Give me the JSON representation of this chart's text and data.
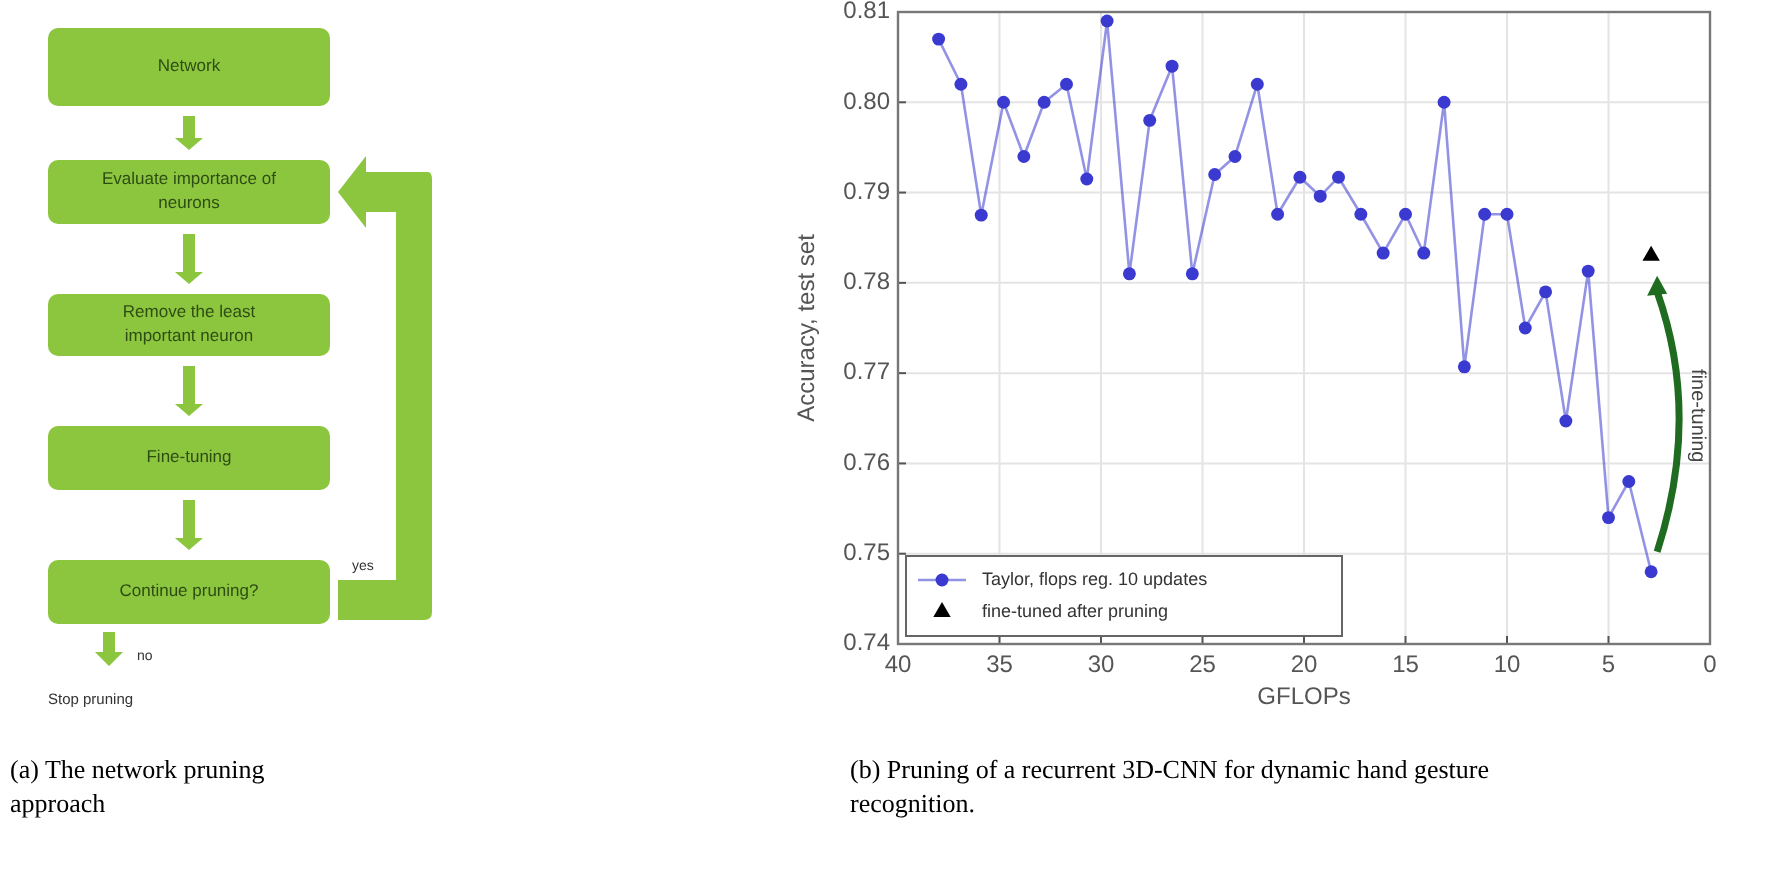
{
  "chart_data": [
    {
      "type": "other",
      "annotations": [
        "Network",
        "Evaluate importance of neurons",
        "Remove the least important neuron",
        "Fine-tuning",
        "Continue pruning?",
        "yes",
        "no",
        "Stop pruning",
        "(a) The network pruning approach"
      ]
    },
    {
      "type": "line",
      "xlabel": "GFLOPs",
      "ylabel": "Accuracy, test set",
      "xlim": [
        40,
        0
      ],
      "ylim": [
        0.74,
        0.81
      ],
      "xticks": [
        40,
        35,
        30,
        25,
        20,
        15,
        10,
        5,
        0
      ],
      "yticks": [
        0.74,
        0.75,
        0.76,
        0.77,
        0.78,
        0.79,
        {
          "value": 0.8,
          "label": "0.80"
        },
        0.81
      ],
      "grid": true,
      "legend": "bottom left",
      "series": [
        {
          "name": "Taylor, flops reg. 10 updates",
          "type": "line",
          "color": "#3a3ad0",
          "marker": "circle",
          "x": [
            38.0,
            36.9,
            35.9,
            34.8,
            33.8,
            32.8,
            31.7,
            30.7,
            29.7,
            28.6,
            27.6,
            26.5,
            25.5,
            24.4,
            23.4,
            22.3,
            21.3,
            20.2,
            19.2,
            18.3,
            17.2,
            16.1,
            15.0,
            14.1,
            13.1,
            12.1,
            11.1,
            10.0,
            9.1,
            8.1,
            7.1,
            6.0,
            5.0,
            4.0,
            2.9
          ],
          "values": [
            0.807,
            0.802,
            0.7875,
            0.8,
            0.794,
            0.8,
            0.802,
            0.7915,
            0.809,
            0.781,
            0.798,
            0.804,
            0.781,
            0.792,
            0.794,
            0.802,
            0.7876,
            0.7917,
            0.7896,
            0.7917,
            0.7876,
            0.7833,
            0.7876,
            0.7833,
            0.8,
            0.7707,
            0.7876,
            0.7876,
            0.775,
            0.779,
            0.7647,
            0.7813,
            0.754,
            0.758,
            0.748
          ]
        },
        {
          "name": "fine-tuned after pruning",
          "type": "scatter",
          "color": "#000000",
          "marker": "triangle",
          "x": [
            2.9
          ],
          "values": [
            0.783
          ]
        }
      ],
      "annotations": [
        "fine-tuning",
        "(b) Pruning of a recurrent 3D-CNN for dynamic hand gesture recognition."
      ]
    }
  ]
}
